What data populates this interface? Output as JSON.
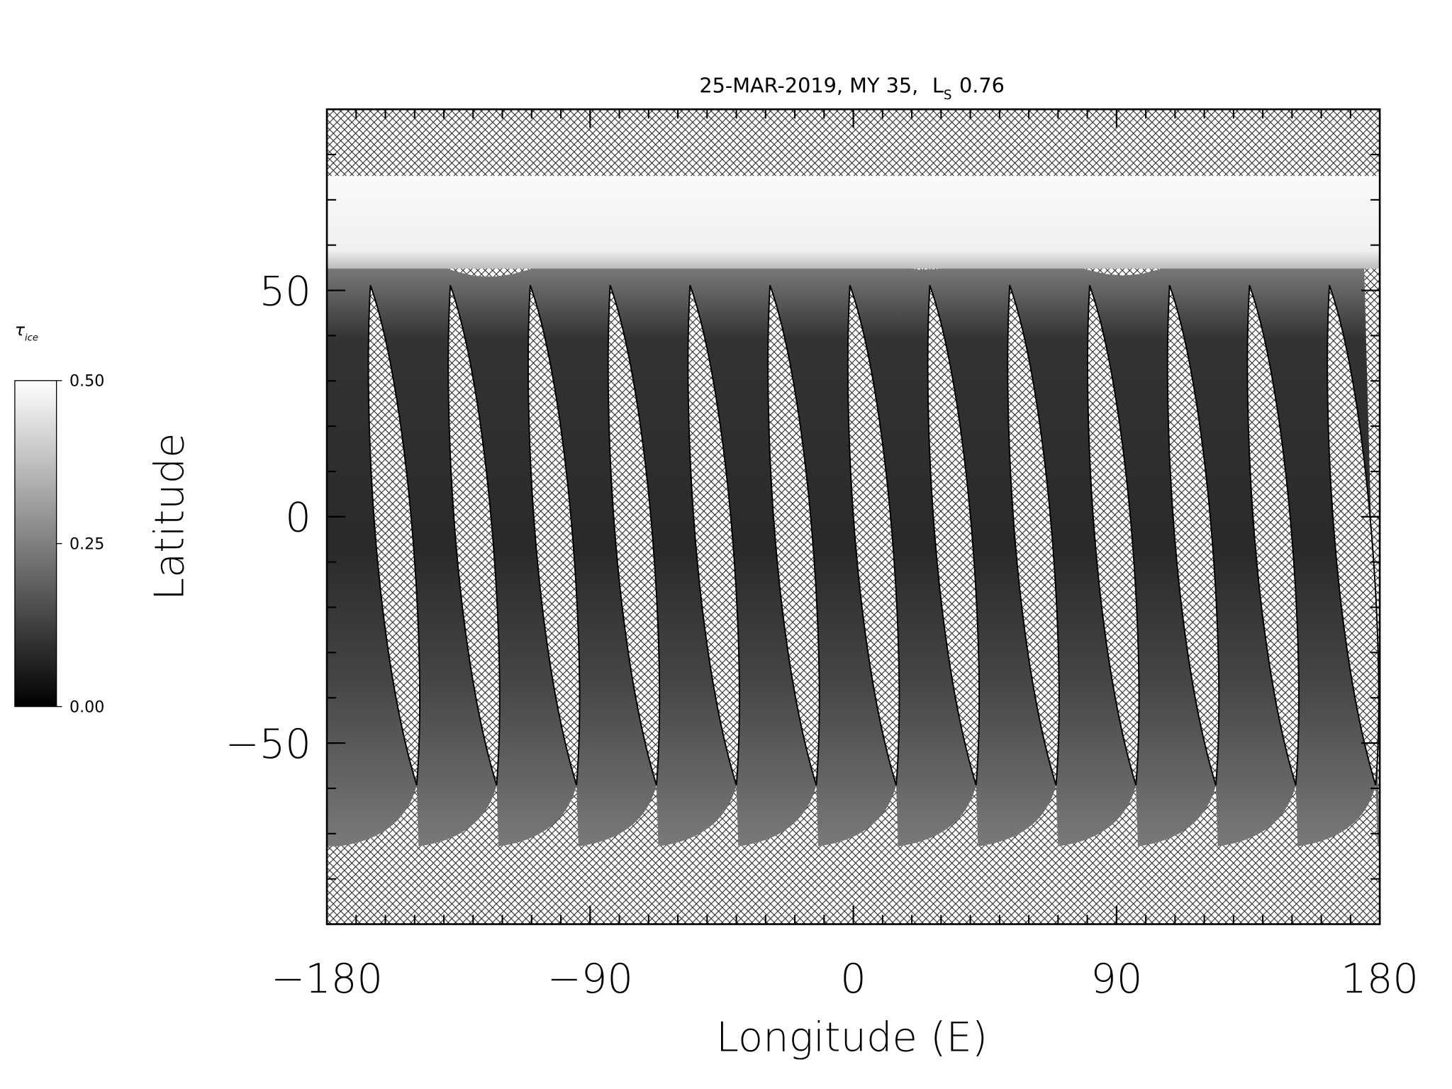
{
  "chart_data": {
    "type": "map",
    "title": "25-MAR-2019, MY 35,",
    "title_ls": {
      "symbol": "L",
      "subscript": "S",
      "value": "0.76"
    },
    "xlabel": "Longitude (E)",
    "ylabel": "Latitude",
    "xlim": [
      -180,
      180
    ],
    "xticks": [
      {
        "value": -180,
        "label": "−180"
      },
      {
        "value": -90,
        "label": "−90"
      },
      0,
      90,
      180
    ],
    "x_minor_step": 10,
    "ylim": [
      -90,
      90
    ],
    "yticks": [
      {
        "value": -50,
        "label": "−50"
      },
      0,
      50
    ],
    "y_minor_step": 10,
    "colorbar": {
      "label": "τ",
      "label_subscript": "ice",
      "clim": [
        0,
        0.5
      ],
      "ticks": [
        {
          "value": 0,
          "label": "0.00"
        },
        {
          "value": 0.25,
          "label": "0.25"
        },
        {
          "value": 0.5,
          "label": "0.50"
        }
      ]
    }
  }
}
